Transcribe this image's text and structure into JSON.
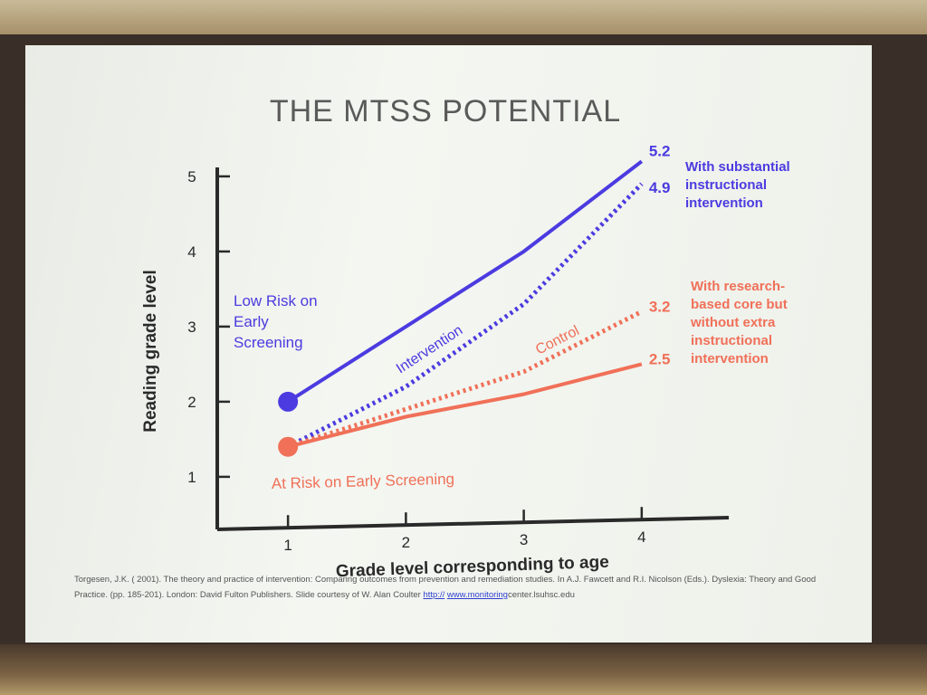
{
  "chart_data": {
    "type": "line",
    "title": "THE MTSS POTENTIAL",
    "xlabel": "Grade level corresponding to age",
    "ylabel": "Reading grade level",
    "xlim": [
      0.4,
      4.7
    ],
    "ylim": [
      0.3,
      5.3
    ],
    "x_ticks": [
      "1",
      "2",
      "3",
      "4"
    ],
    "y_ticks": [
      "1",
      "2",
      "3",
      "4",
      "5"
    ],
    "series": [
      {
        "name": "Low Risk on Early Screening",
        "style": "solid",
        "color": "#4b3be0",
        "x": [
          1,
          2,
          3,
          4
        ],
        "y": [
          2.0,
          3.0,
          4.0,
          5.2
        ]
      },
      {
        "name": "Intervention",
        "style": "dotted",
        "color": "#4b3be0",
        "x": [
          1,
          2,
          3,
          4
        ],
        "y": [
          1.4,
          2.2,
          3.3,
          4.9
        ]
      },
      {
        "name": "Control",
        "style": "dotted",
        "color": "#f07058",
        "x": [
          1,
          2,
          3,
          4
        ],
        "y": [
          1.4,
          1.9,
          2.4,
          3.2
        ]
      },
      {
        "name": "At Risk on Early Screening",
        "style": "solid",
        "color": "#f07058",
        "x": [
          1,
          2,
          3,
          4
        ],
        "y": [
          1.4,
          1.8,
          2.1,
          2.5
        ]
      }
    ],
    "end_labels": [
      "5.2",
      "4.9",
      "3.2",
      "2.5"
    ],
    "annotations": {
      "low_risk": [
        "Low Risk on",
        "Early",
        "Screening"
      ],
      "at_risk": "At Risk on Early Screening",
      "intervention": "Intervention",
      "control": "Control",
      "substantial": [
        "With substantial",
        "instructional",
        "intervention"
      ],
      "research": [
        "With research-",
        "based core but",
        "without extra",
        "instructional",
        "intervention"
      ]
    },
    "grid": false
  },
  "reference": {
    "text": "Torgesen, J.K. ( 2001). The theory and practice of intervention: Comparing outcomes from prevention and remediation studies. In A.J. Fawcett and R.I. Nicolson (Eds.). Dyslexia: Theory and Good Practice. (pp. 185-201). London: David Fulton Publishers. Slide courtesy of W. Alan Coulter",
    "link1": "http://",
    "link2": "www.monitoring",
    "link_rest": "center.lsuhsc.edu"
  },
  "colors": {
    "blue": "#4b3be0",
    "orange": "#f07058",
    "title": "#5a5a5a",
    "axis": "#2a2a2a"
  }
}
